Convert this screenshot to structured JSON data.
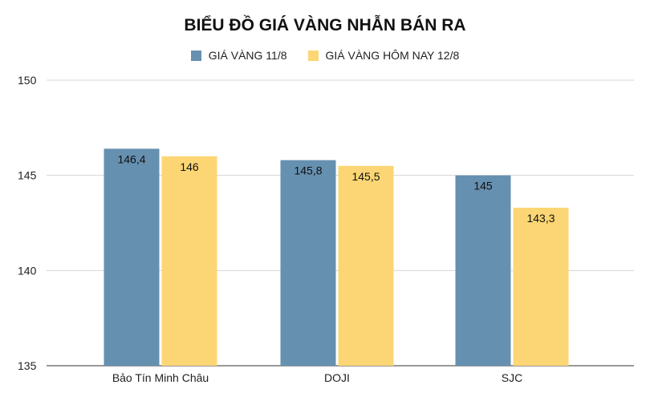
{
  "chart_data": {
    "type": "bar",
    "title": "BIỂU ĐỒ GIÁ VÀNG NHẪN BÁN RA",
    "categories": [
      "Bảo Tín Minh Châu",
      "DOJI",
      "SJC"
    ],
    "series": [
      {
        "name": "GIÁ VÀNG 11/8",
        "color": "#6690b0",
        "values": [
          146.4,
          145.8,
          145
        ],
        "labels": [
          "146,4",
          "145,8",
          "145"
        ]
      },
      {
        "name": "GIÁ VÀNG HÔM NAY 12/8",
        "color": "#fcd674",
        "values": [
          146,
          145.5,
          143.3
        ],
        "labels": [
          "146",
          "145,5",
          "143,3"
        ]
      }
    ],
    "ylim": [
      135,
      150
    ],
    "yticks": [
      135,
      140,
      145,
      150
    ],
    "ytick_labels": [
      "135",
      "140",
      "145",
      "150"
    ],
    "xlabel": "",
    "ylabel": "",
    "grid": true,
    "legend_position": "top"
  }
}
